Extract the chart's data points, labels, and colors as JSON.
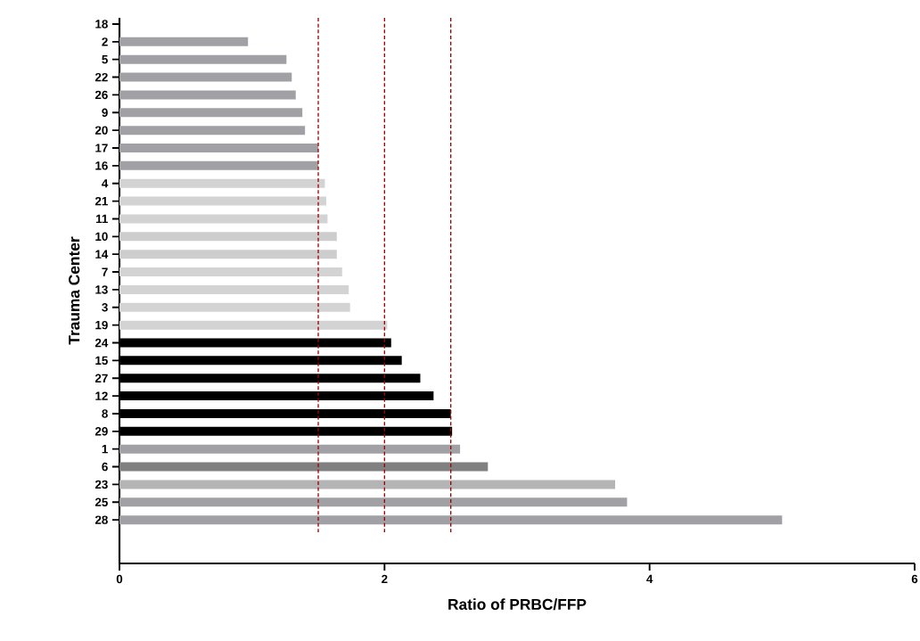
{
  "chart_data": {
    "type": "bar",
    "orientation": "horizontal",
    "xlabel": "Ratio of PRBC/FFP",
    "ylabel": "Trauma Center",
    "categories": [
      "18",
      "2",
      "5",
      "22",
      "26",
      "9",
      "20",
      "17",
      "16",
      "4",
      "21",
      "11",
      "10",
      "14",
      "7",
      "13",
      "3",
      "19",
      "24",
      "15",
      "27",
      "12",
      "8",
      "29",
      "1",
      "6",
      "23",
      "25",
      "28"
    ],
    "values": [
      null,
      0.97,
      1.26,
      1.3,
      1.33,
      1.38,
      1.4,
      1.5,
      1.5,
      1.55,
      1.56,
      1.57,
      1.64,
      1.64,
      1.68,
      1.73,
      1.74,
      2.02,
      2.05,
      2.13,
      2.27,
      2.37,
      2.5,
      2.51,
      2.57,
      2.78,
      3.74,
      3.83,
      5.0
    ],
    "colors": [
      "#a0a0a5",
      "#a0a0a5",
      "#a0a0a5",
      "#a0a0a5",
      "#a0a0a5",
      "#a0a0a5",
      "#a0a0a5",
      "#a0a0a5",
      "#a0a0a5",
      "#d3d3d3",
      "#d3d3d3",
      "#d3d3d3",
      "#cdcdcd",
      "#cdcdcd",
      "#d3d3d3",
      "#d3d3d3",
      "#d3d3d3",
      "#d3d3d3",
      "#000000",
      "#000000",
      "#000000",
      "#000000",
      "#000000",
      "#000000",
      "#a0a0a5",
      "#808080",
      "#b4b4b4",
      "#a0a0a5",
      "#a0a0a5"
    ],
    "xlim": [
      0,
      6
    ],
    "xticks": [
      0,
      2,
      4,
      6
    ],
    "grid": false,
    "ref_lines": [
      {
        "axis": "x",
        "value": 1.5,
        "color": "#a00000",
        "line_style": "dashed"
      },
      {
        "axis": "x",
        "value": 2,
        "color": "#a00000",
        "line_style": "dashed"
      },
      {
        "axis": "x",
        "value": 2.5,
        "color": "#a00000",
        "line_style": "dashed"
      }
    ]
  }
}
